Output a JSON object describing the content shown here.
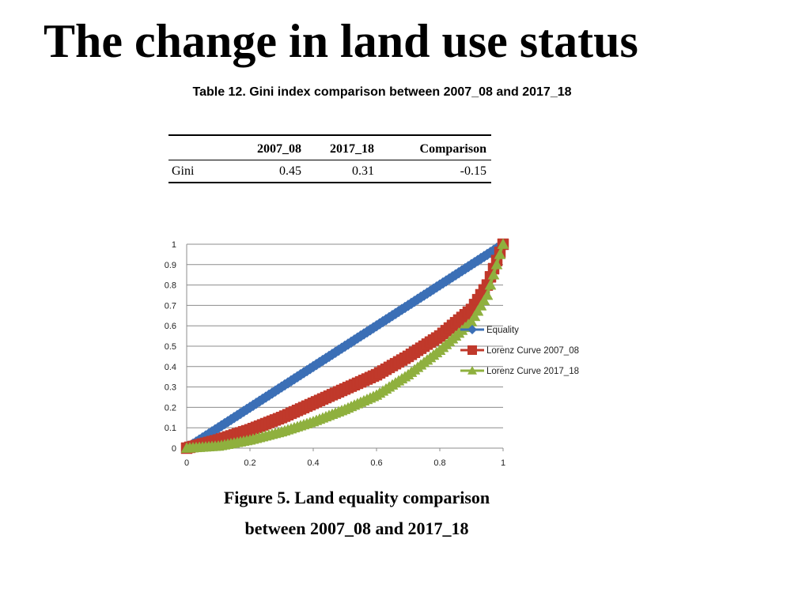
{
  "slide": {
    "title": "The change in land use status"
  },
  "table": {
    "caption": "Table 12. Gini index comparison between 2007_08 and 2017_18",
    "headers": [
      "",
      "2007_08",
      "2017_18",
      "Comparison"
    ],
    "rows": [
      [
        "Gini",
        "0.45",
        "0.31",
        "-0.15"
      ]
    ]
  },
  "figure": {
    "caption_line1": "Figure 5. Land equality comparison",
    "caption_line2": "between 2007_08 and 2017_18"
  },
  "chart_data": {
    "type": "line",
    "title": "",
    "xlabel": "",
    "ylabel": "",
    "xlim": [
      0,
      1
    ],
    "ylim": [
      0,
      1
    ],
    "x_ticks": [
      "0",
      "0.2",
      "0.4",
      "0.6",
      "0.8",
      "1"
    ],
    "y_ticks": [
      "0",
      "0.1",
      "0.2",
      "0.3",
      "0.4",
      "0.5",
      "0.6",
      "0.7",
      "0.8",
      "0.9",
      "1"
    ],
    "grid": "horizontal",
    "legend_position": "right",
    "series": [
      {
        "name": "Equality",
        "color": "#3b6fb6",
        "marker": "diamond",
        "x": [
          0,
          0.1,
          0.2,
          0.3,
          0.4,
          0.5,
          0.6,
          0.7,
          0.8,
          0.9,
          1.0
        ],
        "y": [
          0,
          0.1,
          0.2,
          0.3,
          0.4,
          0.5,
          0.6,
          0.7,
          0.8,
          0.9,
          1.0
        ]
      },
      {
        "name": "Lorenz Curve 2007_08",
        "color": "#c0392b",
        "marker": "square",
        "x": [
          0,
          0.1,
          0.2,
          0.3,
          0.4,
          0.5,
          0.6,
          0.7,
          0.8,
          0.9,
          0.95,
          1.0
        ],
        "y": [
          0,
          0.04,
          0.09,
          0.15,
          0.22,
          0.29,
          0.36,
          0.45,
          0.55,
          0.68,
          0.8,
          1.0
        ]
      },
      {
        "name": "Lorenz Curve 2017_18",
        "color": "#8fb03e",
        "marker": "triangle",
        "x": [
          0,
          0.1,
          0.2,
          0.3,
          0.4,
          0.5,
          0.6,
          0.7,
          0.8,
          0.9,
          0.95,
          1.0
        ],
        "y": [
          0,
          0.01,
          0.04,
          0.08,
          0.13,
          0.19,
          0.26,
          0.36,
          0.48,
          0.62,
          0.75,
          1.0
        ]
      }
    ]
  }
}
